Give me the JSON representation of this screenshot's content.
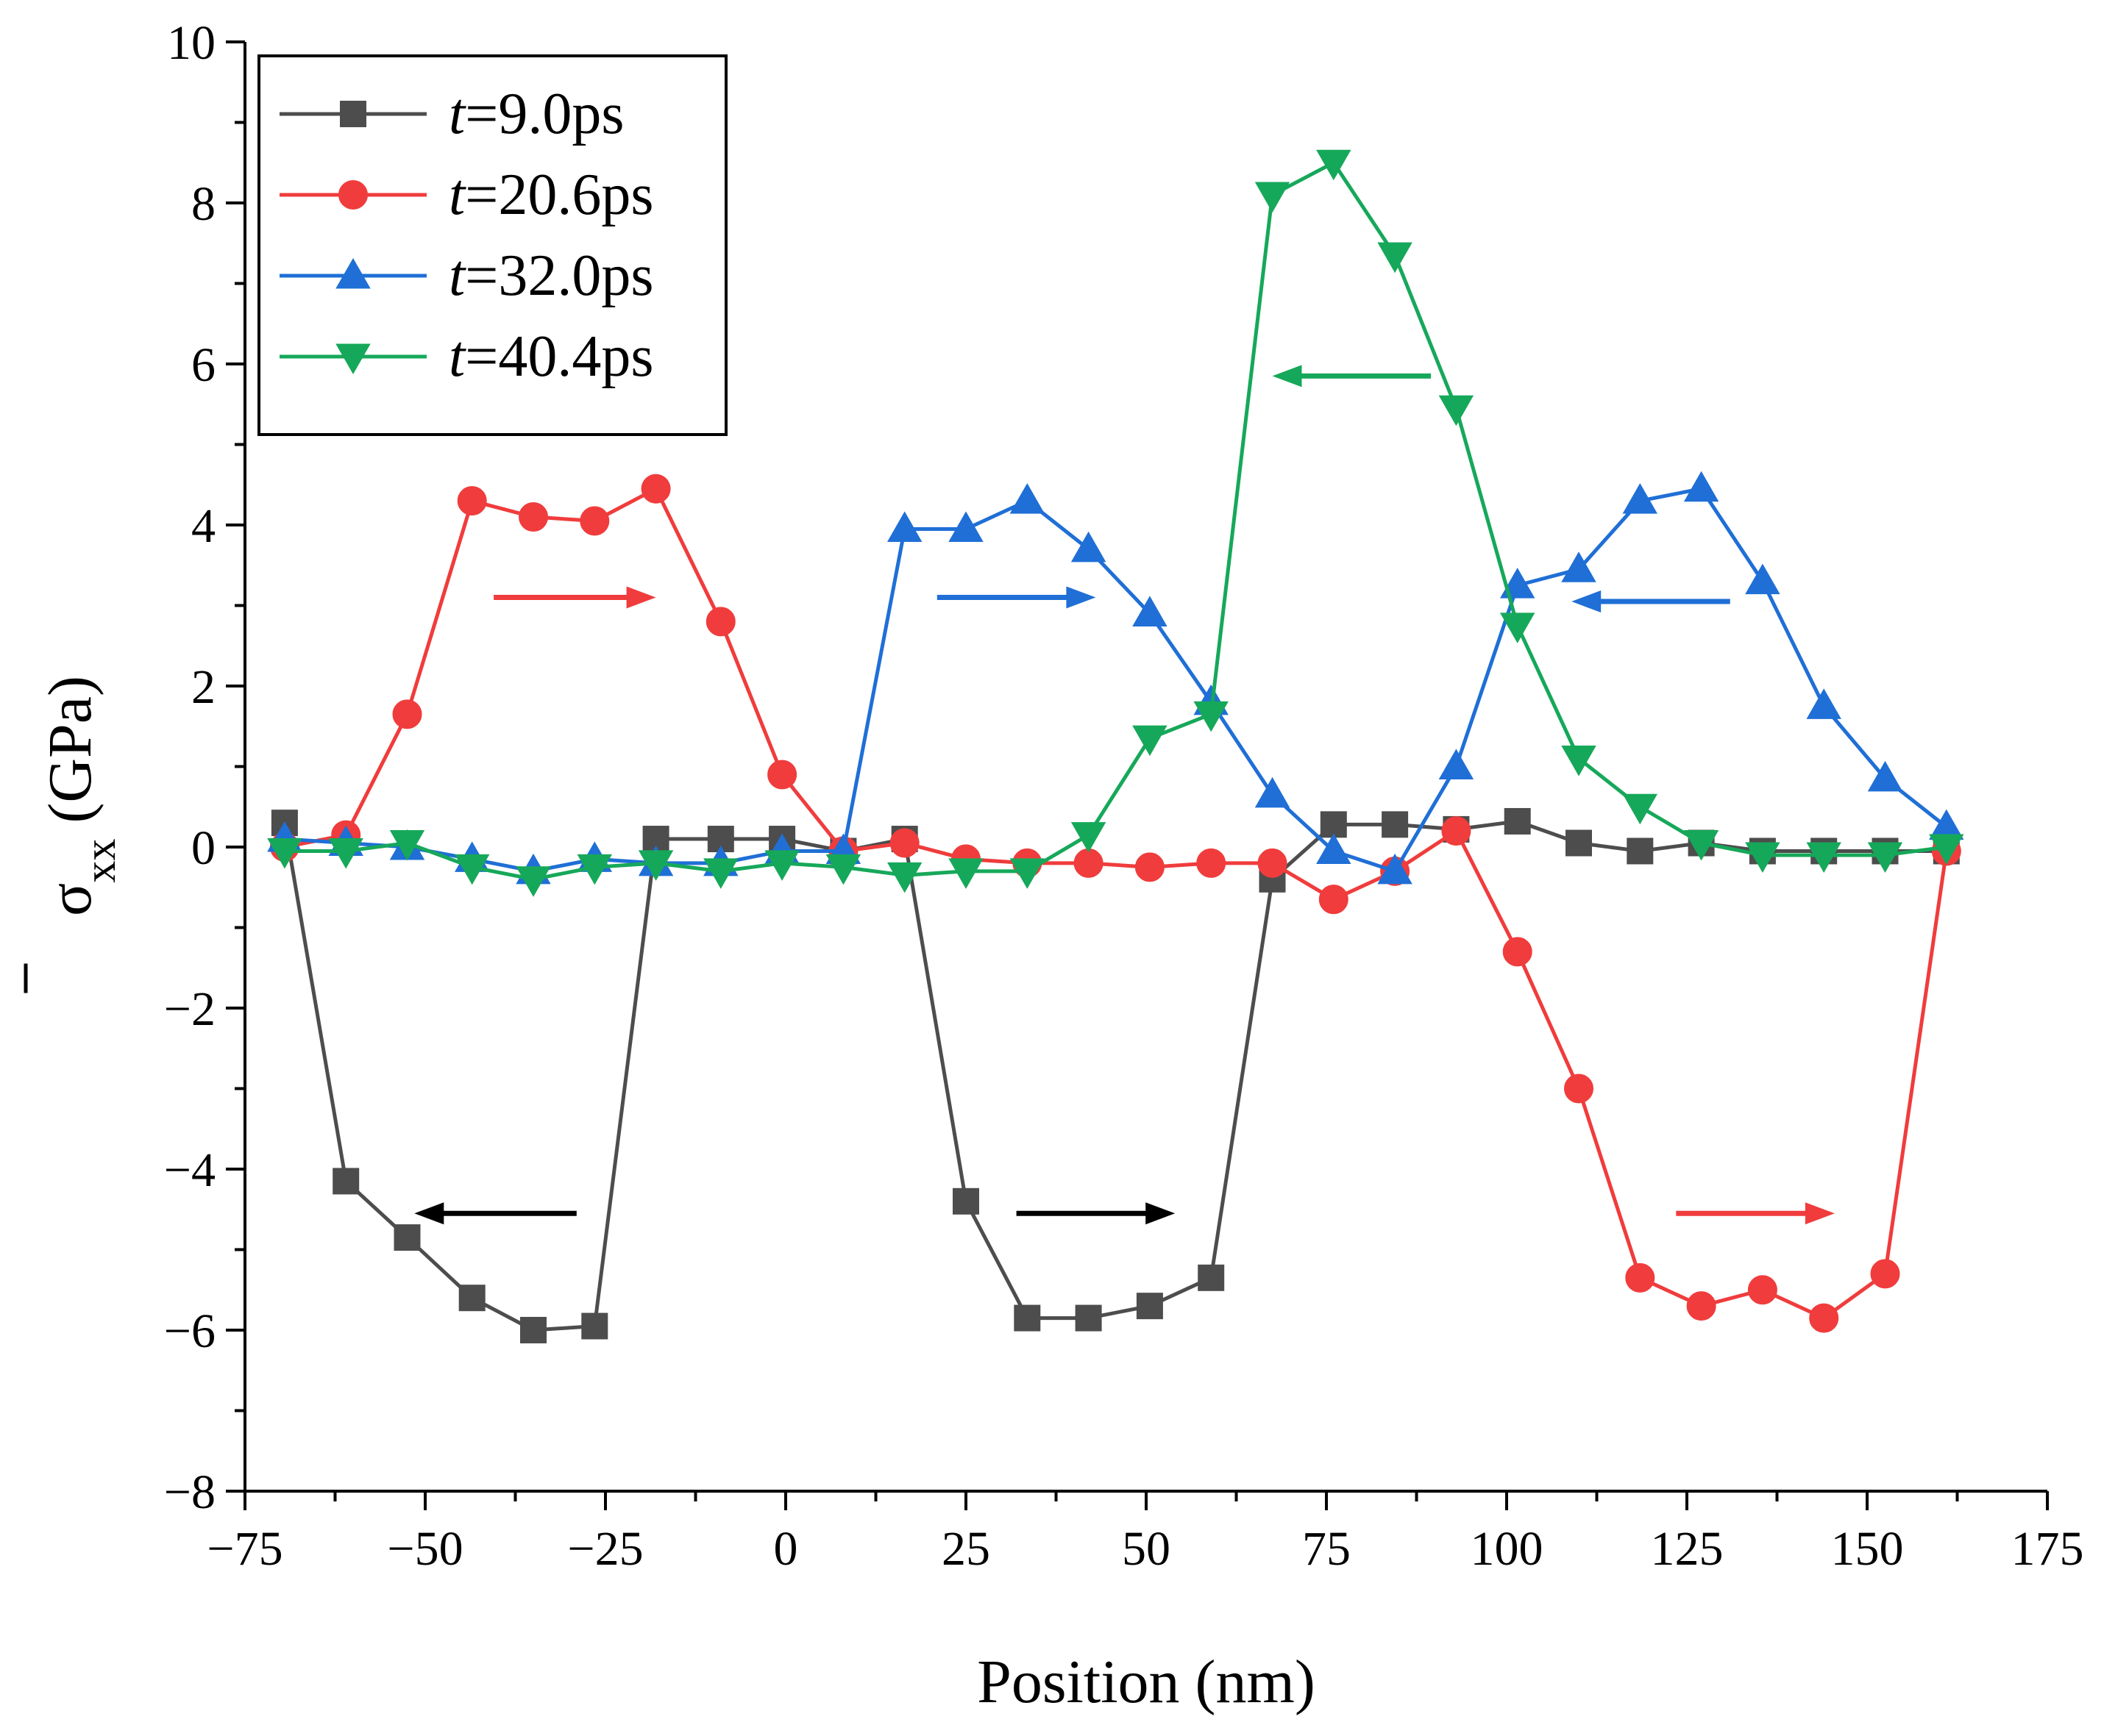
{
  "chart_data": {
    "type": "line",
    "xlabel": "Position (nm)",
    "ylabel": "σ",
    "ylabel_sub": "xx",
    "ylabel_unit": " (GPa)",
    "xlim": [
      -75,
      175
    ],
    "ylim": [
      -8,
      10
    ],
    "xticks": [
      -75,
      -50,
      -25,
      0,
      25,
      50,
      75,
      100,
      125,
      150,
      175
    ],
    "yticks": [
      -8,
      -6,
      -4,
      -2,
      0,
      2,
      4,
      6,
      8,
      10
    ],
    "xtick_labels": [
      "−75",
      "−50",
      "−25",
      "0",
      "25",
      "50",
      "75",
      "100",
      "125",
      "150",
      "175"
    ],
    "ytick_labels": [
      "−8",
      "−6",
      "−4",
      "−2",
      "0",
      "2",
      "4",
      "6",
      "8",
      "10"
    ],
    "grid": false,
    "legend_position": "top-left",
    "x": [
      -69.5,
      -61,
      -52.5,
      -43.5,
      -35,
      -26.5,
      -18,
      -9,
      -0.5,
      8,
      16.5,
      25,
      33.5,
      42,
      50.5,
      59,
      67.5,
      76,
      84.5,
      93,
      101.5,
      110,
      118.5,
      127,
      135.5,
      144,
      152.5,
      161
    ],
    "series": [
      {
        "name": "t=9.0ps",
        "name_italic": "t",
        "name_rest": "=9.0ps",
        "color": "#4d4d4d",
        "marker": "square",
        "values": [
          0.3,
          -4.15,
          -4.85,
          -5.6,
          -6.0,
          -5.95,
          0.1,
          0.1,
          0.1,
          -0.05,
          0.1,
          -4.4,
          -5.85,
          -5.85,
          -5.7,
          -5.35,
          -0.4,
          0.28,
          0.28,
          0.22,
          0.32,
          0.05,
          -0.05,
          0.05,
          -0.05,
          -0.05,
          -0.05,
          -0.05
        ]
      },
      {
        "name": "t=20.6ps",
        "name_italic": "t",
        "name_rest": "=20.6ps",
        "color": "#f03c3c",
        "marker": "circle",
        "values": [
          0.0,
          0.15,
          1.65,
          4.3,
          4.1,
          4.05,
          4.45,
          2.8,
          0.9,
          -0.05,
          0.05,
          -0.15,
          -0.2,
          -0.2,
          -0.25,
          -0.2,
          -0.2,
          -0.65,
          -0.3,
          0.2,
          -1.3,
          -3.0,
          -5.35,
          -5.7,
          -5.5,
          -5.85,
          -5.3,
          -0.05
        ]
      },
      {
        "name": "t=32.0ps",
        "name_italic": "t",
        "name_rest": "=32.0ps",
        "color": "#1f6fd6",
        "marker": "triangle-up",
        "values": [
          0.1,
          0.05,
          0.0,
          -0.15,
          -0.3,
          -0.15,
          -0.2,
          -0.2,
          -0.05,
          -0.05,
          3.95,
          3.95,
          4.3,
          3.7,
          2.9,
          1.8,
          0.65,
          -0.05,
          -0.3,
          1.0,
          3.25,
          3.45,
          4.3,
          4.45,
          3.3,
          1.75,
          0.85,
          0.25
        ]
      },
      {
        "name": "t=40.4ps",
        "name_italic": "t",
        "name_rest": "=40.4ps",
        "color": "#16a85a",
        "marker": "triangle-down",
        "values": [
          -0.05,
          -0.05,
          0.05,
          -0.25,
          -0.4,
          -0.25,
          -0.2,
          -0.3,
          -0.2,
          -0.25,
          -0.35,
          -0.3,
          -0.3,
          0.15,
          1.35,
          1.65,
          8.1,
          8.5,
          7.35,
          5.45,
          2.75,
          1.1,
          0.5,
          0.05,
          -0.1,
          -0.1,
          -0.1,
          0.0
        ]
      }
    ],
    "annotations": [
      {
        "type": "arrow",
        "color": "#f03c3c",
        "from": [
          -40.5,
          3.1
        ],
        "to": [
          -18,
          3.1
        ]
      },
      {
        "type": "arrow",
        "color": "#1f6fd6",
        "from": [
          21,
          3.1
        ],
        "to": [
          43,
          3.1
        ]
      },
      {
        "type": "arrow",
        "color": "#16a85a",
        "from": [
          89.5,
          5.85
        ],
        "to": [
          67.5,
          5.85
        ]
      },
      {
        "type": "arrow",
        "color": "#1f6fd6",
        "from": [
          131,
          3.05
        ],
        "to": [
          109,
          3.05
        ]
      },
      {
        "type": "arrow",
        "color": "#000000",
        "from": [
          -29,
          -4.55
        ],
        "to": [
          -51.5,
          -4.55
        ]
      },
      {
        "type": "arrow",
        "color": "#000000",
        "from": [
          32,
          -4.55
        ],
        "to": [
          54,
          -4.55
        ]
      },
      {
        "type": "arrow",
        "color": "#f03c3c",
        "from": [
          123.5,
          -4.55
        ],
        "to": [
          145.5,
          -4.55
        ]
      }
    ]
  }
}
